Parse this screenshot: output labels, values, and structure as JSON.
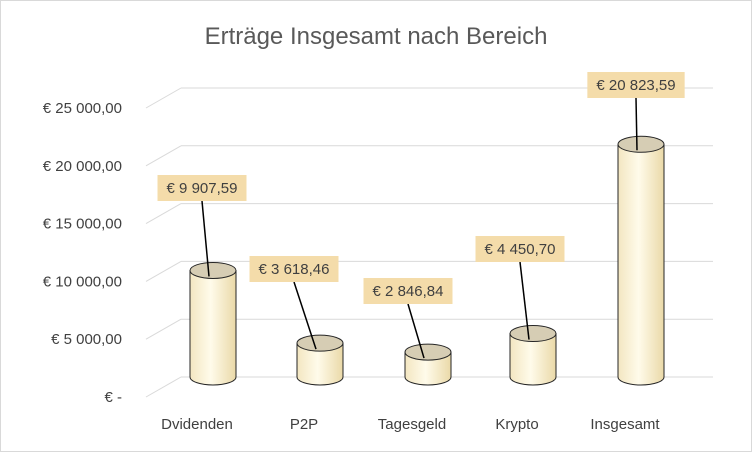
{
  "chart_data": {
    "type": "bar",
    "style": "3d-cylinder",
    "title": "Erträge Insgesamt nach Bereich",
    "xlabel": "",
    "ylabel": "",
    "categories": [
      "Dvidenden",
      "P2P",
      "Tagesgeld",
      "Krypto",
      "Insgesamt"
    ],
    "values": [
      9907.59,
      3618.46,
      2846.84,
      4450.7,
      20823.59
    ],
    "data_labels": [
      "€ 9 907,59",
      "€ 3 618,46",
      "€ 2 846,84",
      "€ 4 450,70",
      "€ 20 823,59"
    ],
    "ylim": [
      0,
      25000
    ],
    "y_ticks": [
      0,
      5000,
      10000,
      15000,
      20000,
      25000
    ],
    "y_tick_labels": [
      "€ -",
      "€ 5 000,00",
      "€ 10 000,00",
      "€ 15 000,00",
      "€ 20 000,00",
      "€ 25 000,00"
    ],
    "grid": true,
    "legend": "none",
    "colors": {
      "bar_fill": "#fff2cc",
      "bar_edge": "#262626",
      "bar_top": "#d6cdb4",
      "label_bg": "#f4dcaa",
      "grid": "#d9d9d9",
      "text": "#404040",
      "title": "#595959"
    }
  }
}
